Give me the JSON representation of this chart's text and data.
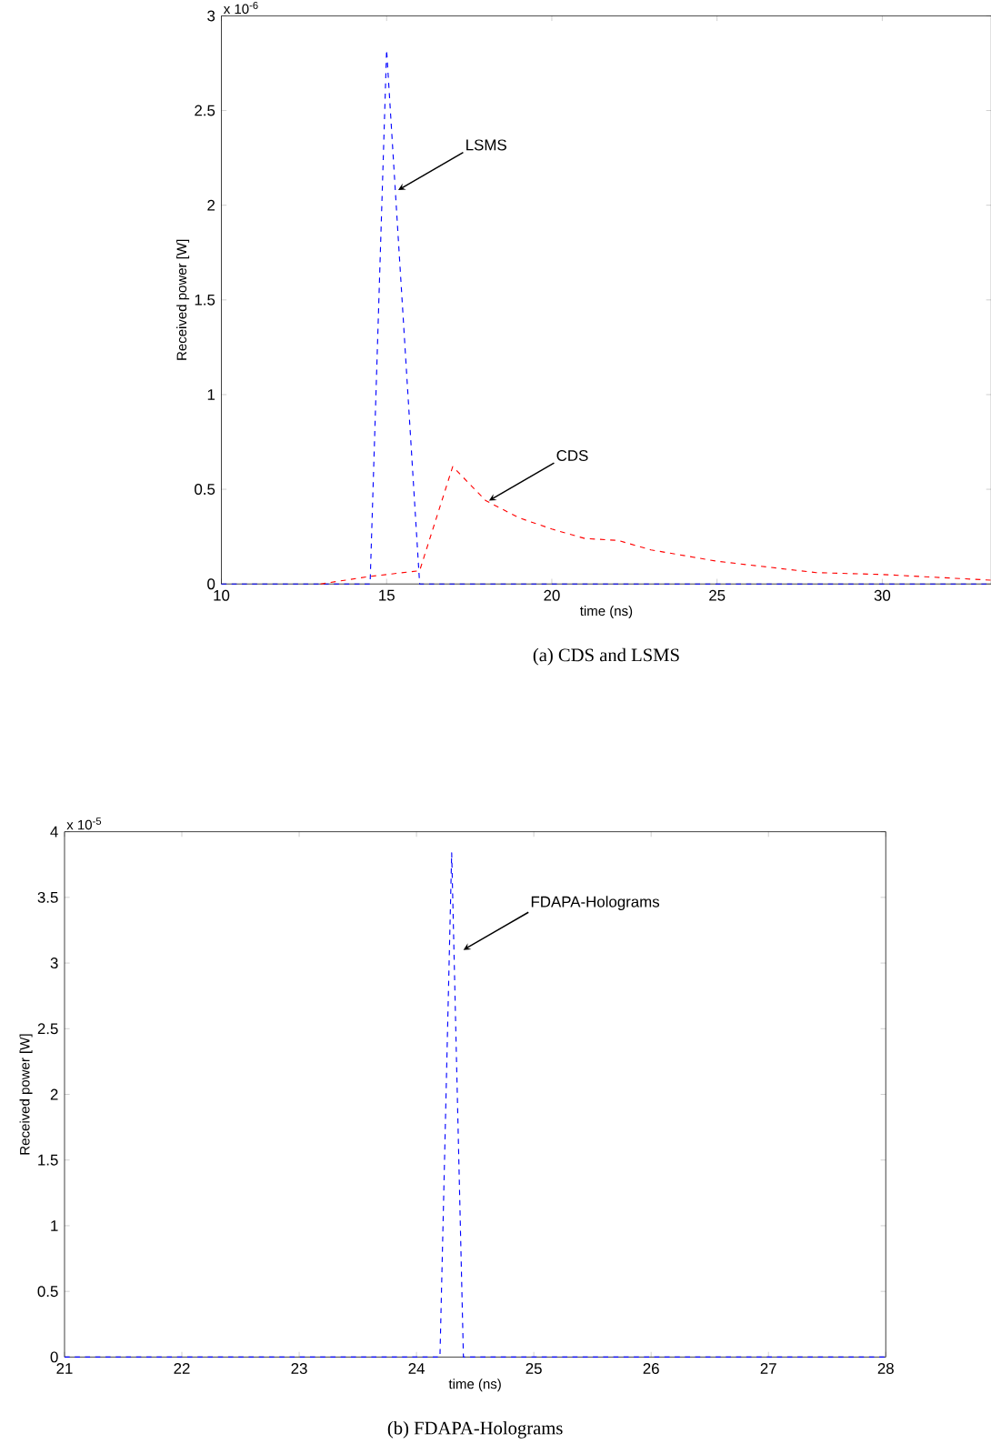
{
  "chart_data": [
    {
      "type": "line",
      "title": "(a)     CDS and LSMS",
      "xlabel": "time (ns)",
      "ylabel": "Received power [W]",
      "xlim": [
        10,
        33.3
      ],
      "ylim": [
        0,
        3
      ],
      "xticks": [
        10,
        15,
        20,
        25,
        30
      ],
      "yticks": [
        0,
        0.5,
        1,
        1.5,
        2,
        2.5,
        3
      ],
      "line_style": "dashed",
      "series": [
        {
          "color": "#0000ff",
          "x": [
            10,
            14.5,
            15,
            16,
            33.3
          ],
          "values": [
            0,
            0,
            2.82,
            0,
            0
          ]
        },
        {
          "color": "#ff0000",
          "x": [
            13,
            14.5,
            16,
            17,
            18,
            19,
            20,
            21,
            22,
            23,
            25,
            28,
            30,
            33.3
          ],
          "values": [
            0,
            0.04,
            0.07,
            0.62,
            0.44,
            0.35,
            0.29,
            0.24,
            0.23,
            0.18,
            0.12,
            0.06,
            0.05,
            0.02
          ]
        }
      ],
      "annotations": [
        "x 10$^{-6}$",
        {
          "text": "LSMS",
          "x": 15.35,
          "y": 2.08
        },
        {
          "text": "CDS",
          "x": 18.1,
          "y": 0.44
        }
      ]
    },
    {
      "type": "line",
      "title": "(b)     FDAPA-Holograms",
      "xlabel": "time (ns)",
      "ylabel": "Received power [W]",
      "xlim": [
        21,
        28
      ],
      "ylim": [
        0,
        4
      ],
      "xticks": [
        21,
        22,
        23,
        24,
        25,
        26,
        27,
        28
      ],
      "yticks": [
        0,
        0.5,
        1,
        1.5,
        2,
        2.5,
        3,
        3.5,
        4
      ],
      "line_style": "dashed",
      "series": [
        {
          "color": "#0000ff",
          "x": [
            21,
            24.2,
            24.3,
            24.4,
            28
          ],
          "values": [
            0,
            0,
            3.84,
            0,
            0
          ]
        }
      ],
      "annotations": [
        "x 10$^{-5}$",
        {
          "text": "FDAPA-Holograms",
          "x": 24.4,
          "y": 3.1
        }
      ]
    }
  ]
}
